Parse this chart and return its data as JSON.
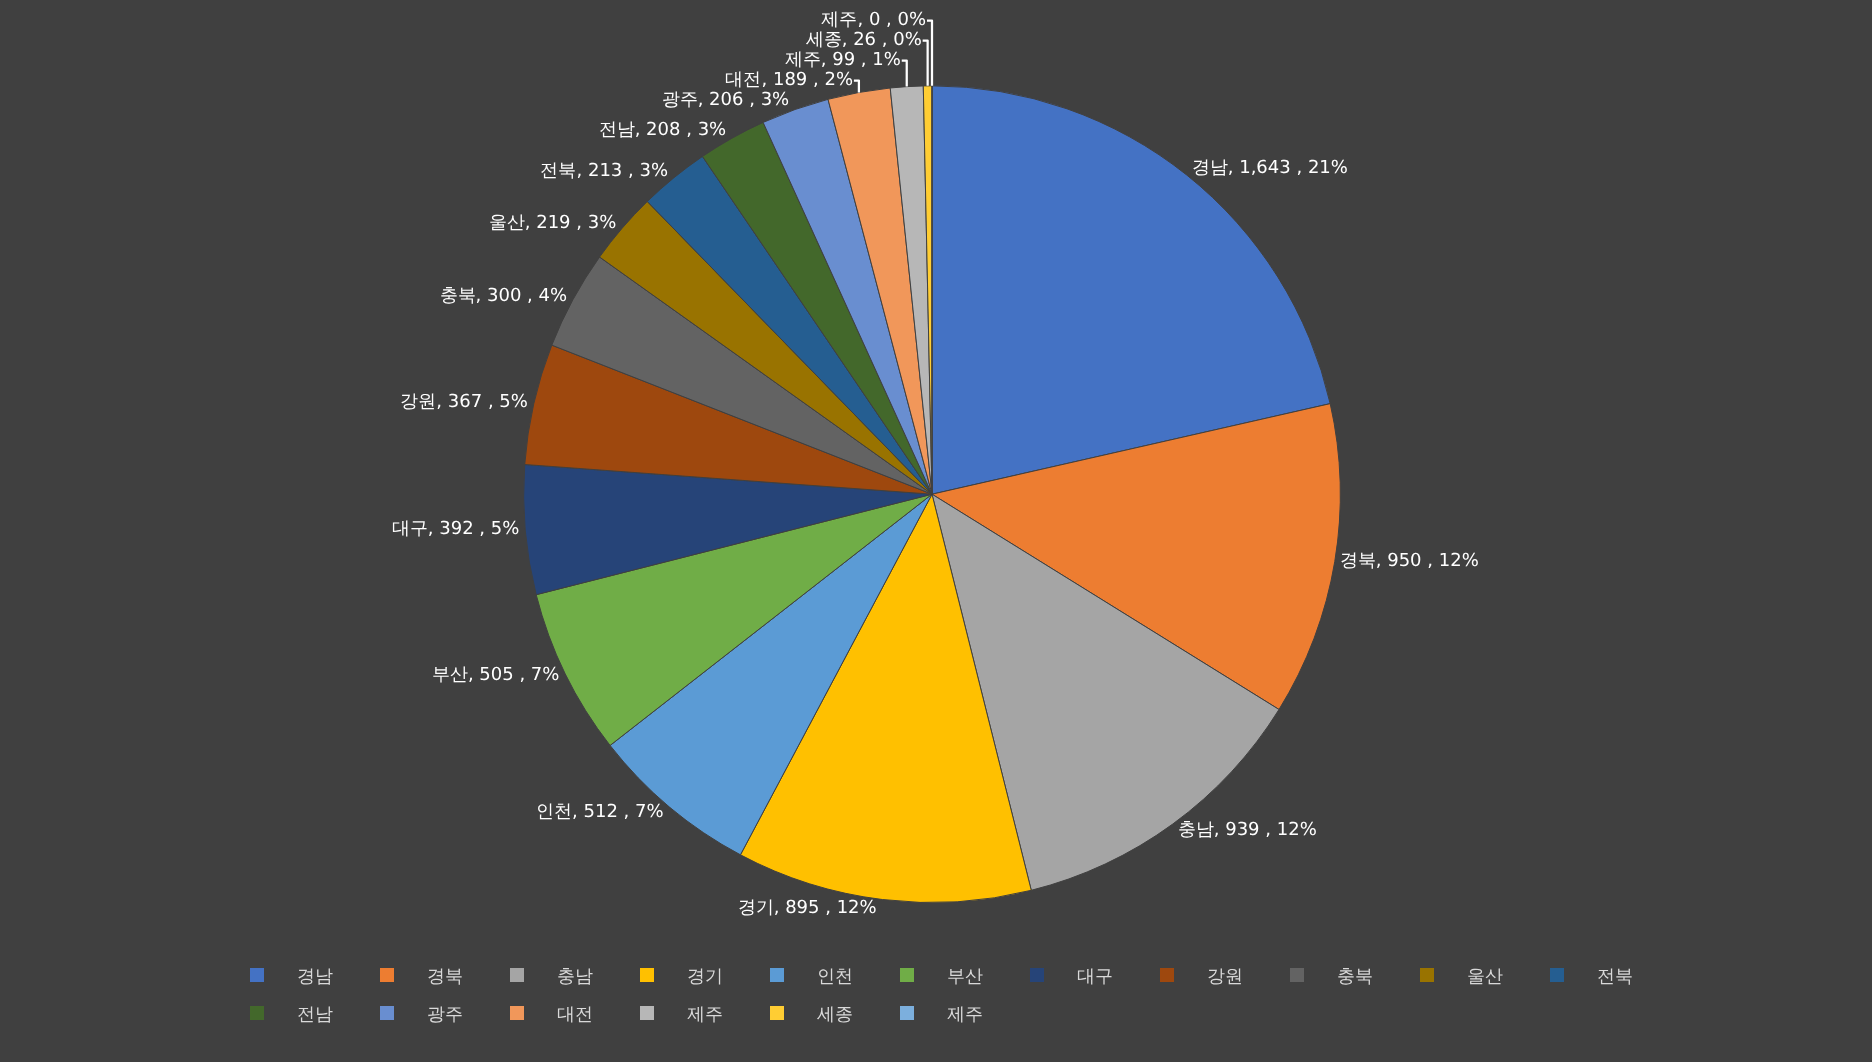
{
  "chart_data": {
    "type": "pie",
    "categories": [
      "경남",
      "경북",
      "충남",
      "경기",
      "인천",
      "부산",
      "대구",
      "강원",
      "충북",
      "울산",
      "전북",
      "전남",
      "광주",
      "대전",
      "제주",
      "세종",
      "제주"
    ],
    "values": [
      1643,
      950,
      939,
      895,
      512,
      505,
      392,
      367,
      300,
      219,
      213,
      208,
      206,
      189,
      99,
      26,
      0
    ],
    "colors": [
      "#4472c4",
      "#ed7d31",
      "#a5a5a5",
      "#ffc000",
      "#5b9bd5",
      "#70ad47",
      "#264478",
      "#9e480e",
      "#636363",
      "#997300",
      "#255e91",
      "#43682b",
      "#698ed0",
      "#f1975a",
      "#b7b7b7",
      "#ffcd33",
      "#7cafdd"
    ],
    "value_labels": [
      "경남, 1,643 , 21%",
      "경북, 950 , 12%",
      "충남, 939 , 12%",
      "경기, 895 , 12%",
      "인천, 512 , 7%",
      "부산, 505 , 7%",
      "대구, 392 , 5%",
      "강원, 367 , 5%",
      "충북, 300 , 4%",
      "울산, 219 , 3%",
      "전북, 213 , 3%",
      "전남, 208 , 3%",
      "광주, 206 , 3%",
      "대전, 189 , 2%",
      "제주, 99 , 1%",
      "세종, 26 , 0%",
      "제주, 0 , 0%"
    ],
    "legend": "bottom"
  }
}
